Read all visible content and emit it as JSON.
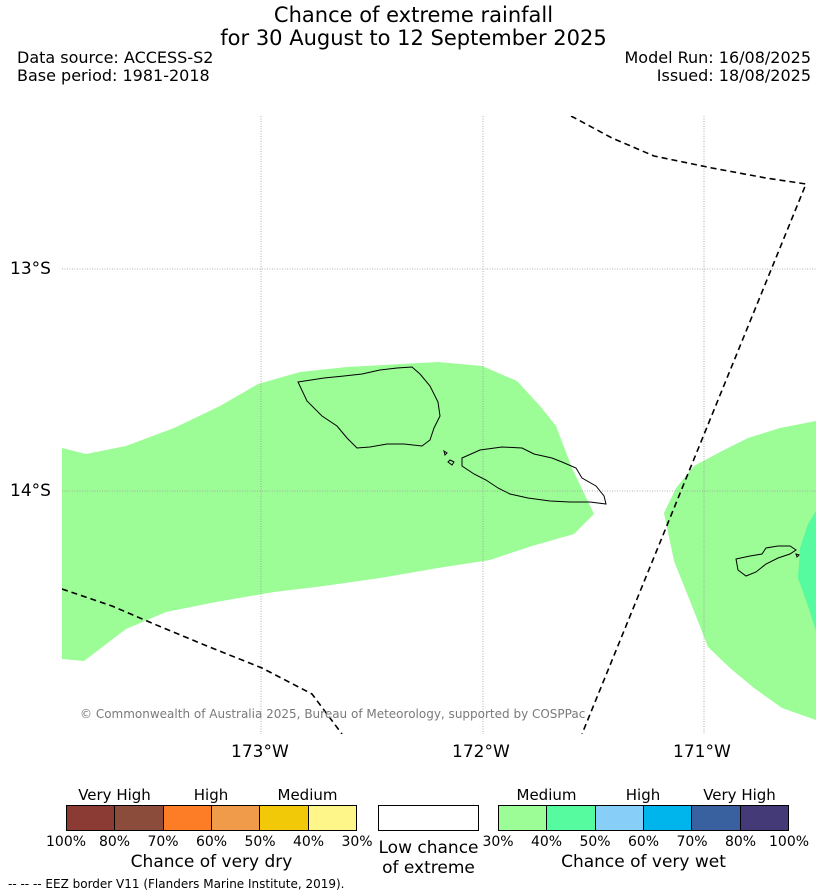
{
  "title": {
    "line1": "Chance of extreme rainfall",
    "line2": "for 30 August to 12 September 2025"
  },
  "info": {
    "data_source": "Data source: ACCESS-S2",
    "base_period": "Base period: 1981-2018",
    "model_run": "Model Run: 16/08/2025",
    "issued": "Issued: 18/08/2025"
  },
  "map": {
    "lat_labels": [
      "13°S",
      "14°S"
    ],
    "lon_labels": [
      "173°W",
      "172°W",
      "171°W"
    ],
    "credit": "© Commonwealth of Australia 2025, Bureau of Meteorology, supported by COSPPac",
    "colors": {
      "medium_wet": "#9cfc96",
      "high_wet": "#56fa9f",
      "eez_line": "#000000"
    }
  },
  "legend_dry": {
    "category_labels": [
      "Very High",
      "High",
      "Medium"
    ],
    "colors": [
      "#8b3a34",
      "#8b4c3c",
      "#fc7d26",
      "#ef9b49",
      "#f2c908",
      "#fff68a"
    ],
    "ticks": [
      "100%",
      "80%",
      "70%",
      "60%",
      "50%",
      "40%",
      "30%"
    ],
    "title": "Chance of very dry"
  },
  "legend_low": {
    "title_line1": "Low chance",
    "title_line2": "of extreme",
    "color": "#ffffff"
  },
  "legend_wet": {
    "category_labels": [
      "Medium",
      "High",
      "Very High"
    ],
    "colors": [
      "#9cfc96",
      "#56fa9f",
      "#87cef9",
      "#00b4ec",
      "#3a619f",
      "#443a77"
    ],
    "ticks": [
      "30%",
      "40%",
      "50%",
      "60%",
      "70%",
      "80%",
      "100%"
    ],
    "title": "Chance of very wet"
  },
  "footnote": "--  --  -- EEZ border V11 (Flanders Marine Institute, 2019)."
}
